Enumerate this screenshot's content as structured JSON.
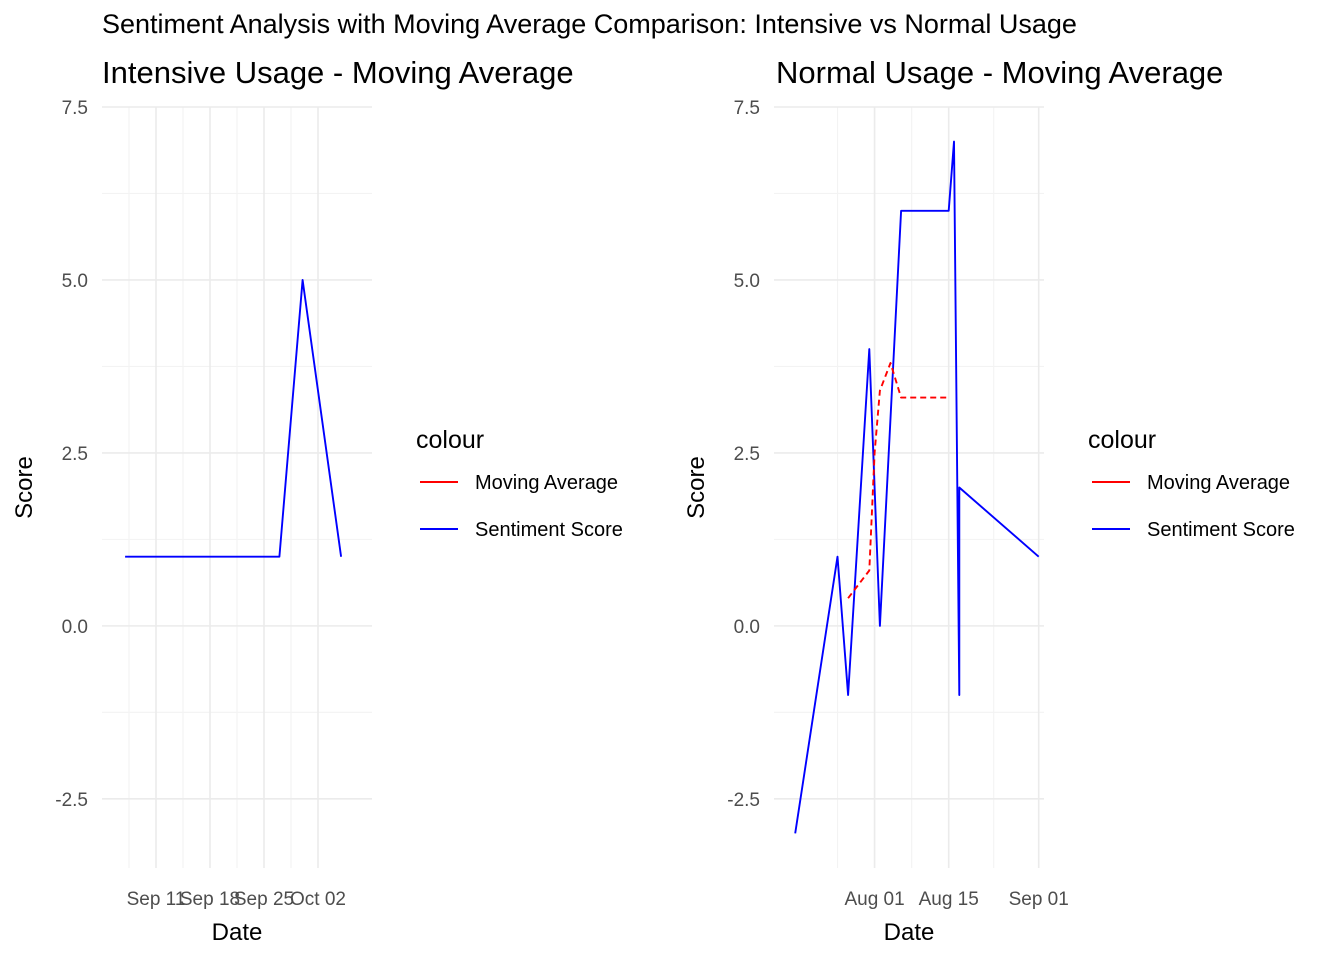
{
  "suptitle": "Sentiment Analysis with Moving Average Comparison: Intensive vs Normal Usage",
  "chart_data": [
    {
      "type": "line",
      "title": "Intensive Usage - Moving Average",
      "xlabel": "Date",
      "ylabel": "Score",
      "ylim": [
        -3.5,
        7.5
      ],
      "yticks": [
        -2.5,
        0.0,
        2.5,
        5.0,
        7.5
      ],
      "ytick_labels": [
        "-2.5",
        "0.0",
        "2.5",
        "5.0",
        "7.5"
      ],
      "xlim": [
        "2023-09-04",
        "2023-10-09"
      ],
      "xticks": [
        "2023-09-11",
        "2023-09-18",
        "2023-09-25",
        "2023-10-02"
      ],
      "xtick_labels": [
        "Sep 11",
        "Sep 18",
        "Sep 25",
        "Oct 02"
      ],
      "grid": true,
      "legend": {
        "title": "colour",
        "position": "right",
        "entries": [
          {
            "label": "Moving Average",
            "color": "#ff0000",
            "dash": false
          },
          {
            "label": "Sentiment Score",
            "color": "#0000ff",
            "dash": false
          }
        ]
      },
      "series": [
        {
          "name": "Sentiment Score",
          "color": "#0000ff",
          "dash": false,
          "points": [
            {
              "x": "2023-09-07",
              "y": 1
            },
            {
              "x": "2023-09-27",
              "y": 1
            },
            {
              "x": "2023-09-30",
              "y": 5
            },
            {
              "x": "2023-10-05",
              "y": 1
            }
          ]
        }
      ]
    },
    {
      "type": "line",
      "title": "Normal Usage - Moving Average",
      "xlabel": "Date",
      "ylabel": "Score",
      "ylim": [
        -3.5,
        7.5
      ],
      "yticks": [
        -2.5,
        0.0,
        2.5,
        5.0,
        7.5
      ],
      "ytick_labels": [
        "-2.5",
        "0.0",
        "2.5",
        "5.0",
        "7.5"
      ],
      "xlim": [
        "2023-07-13",
        "2023-09-02"
      ],
      "xticks": [
        "2023-08-01",
        "2023-08-15",
        "2023-09-01"
      ],
      "xtick_labels": [
        "Aug 01",
        "Aug 15",
        "Sep 01"
      ],
      "grid": true,
      "legend": {
        "title": "colour",
        "position": "right",
        "entries": [
          {
            "label": "Moving Average",
            "color": "#ff0000",
            "dash": false
          },
          {
            "label": "Sentiment Score",
            "color": "#0000ff",
            "dash": false
          }
        ]
      },
      "series": [
        {
          "name": "Sentiment Score",
          "color": "#0000ff",
          "dash": false,
          "points": [
            {
              "x": "2023-07-17",
              "y": -3
            },
            {
              "x": "2023-07-25",
              "y": 1
            },
            {
              "x": "2023-07-27",
              "y": -1
            },
            {
              "x": "2023-07-31",
              "y": 4
            },
            {
              "x": "2023-08-02",
              "y": 0
            },
            {
              "x": "2023-08-06",
              "y": 6
            },
            {
              "x": "2023-08-15",
              "y": 6
            },
            {
              "x": "2023-08-16",
              "y": 7
            },
            {
              "x": "2023-08-17",
              "y": -1
            },
            {
              "x": "2023-08-17",
              "y": 2
            },
            {
              "x": "2023-09-01",
              "y": 1
            }
          ]
        },
        {
          "name": "Moving Average",
          "color": "#ff0000",
          "dash": true,
          "points": [
            {
              "x": "2023-07-27",
              "y": 0.4
            },
            {
              "x": "2023-07-30",
              "y": 0.7
            },
            {
              "x": "2023-07-31",
              "y": 0.8
            },
            {
              "x": "2023-08-01",
              "y": 2.5
            },
            {
              "x": "2023-08-02",
              "y": 3.4
            },
            {
              "x": "2023-08-04",
              "y": 3.8
            },
            {
              "x": "2023-08-06",
              "y": 3.3
            },
            {
              "x": "2023-08-15",
              "y": 3.3
            }
          ]
        }
      ]
    }
  ]
}
